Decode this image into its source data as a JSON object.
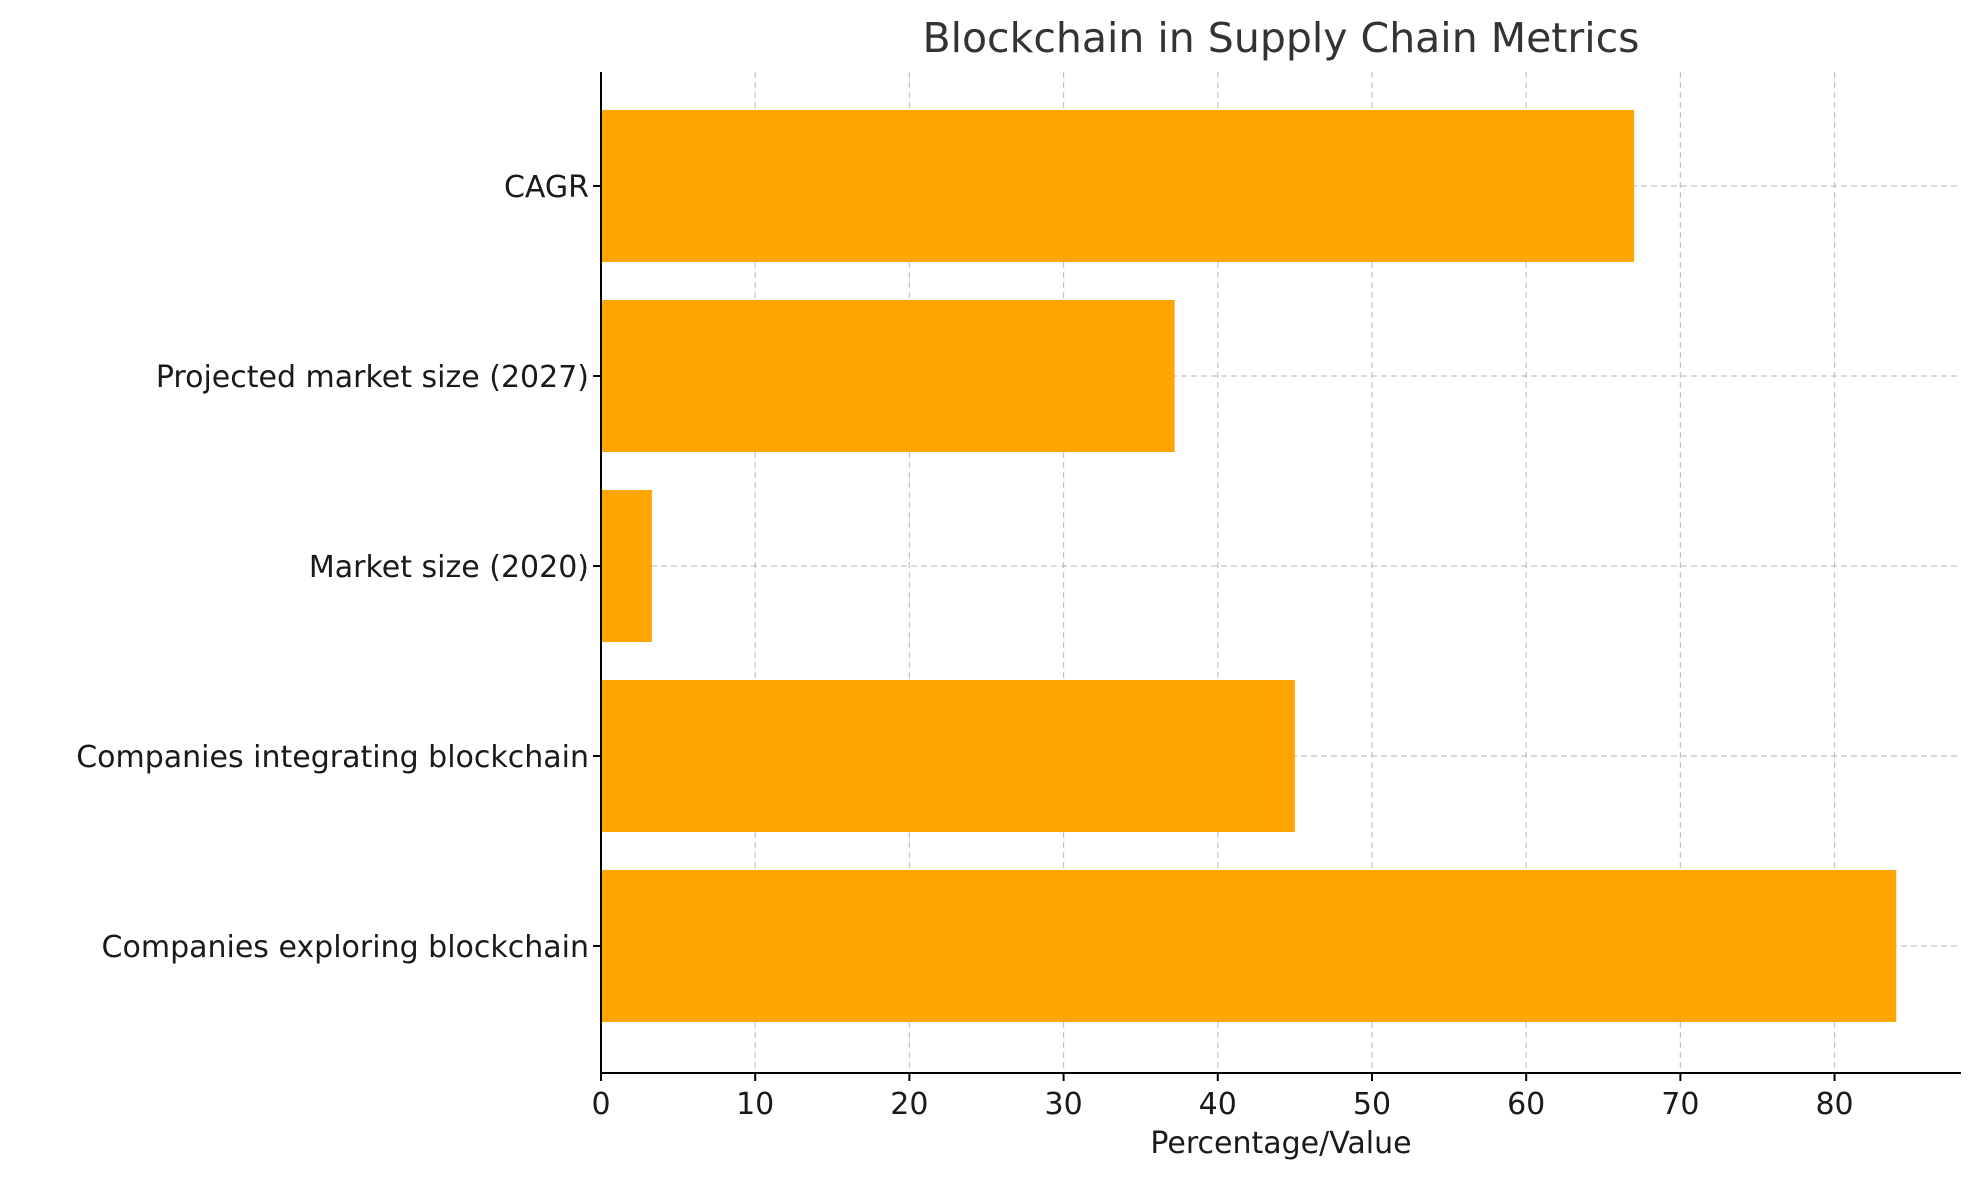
{
  "chart_data": {
    "type": "bar",
    "orientation": "horizontal",
    "title": "Blockchain in Supply Chain Metrics",
    "xlabel": "Percentage/Value",
    "ylabel": "",
    "categories": [
      "Companies exploring blockchain",
      "Companies integrating blockchain",
      "Market size (2020)",
      "Projected market size (2027)",
      "CAGR"
    ],
    "values": [
      84,
      45,
      3.3,
      37.2,
      67
    ],
    "xlim": [
      0,
      88.2
    ],
    "xticks": [
      0,
      10,
      20,
      30,
      40,
      50,
      60,
      70,
      80
    ],
    "grid": true,
    "bar_color": "#FFA500",
    "grid_color": "#b0b0b0",
    "axis_color": "#000000",
    "text_color": "#1a1a1a",
    "title_color": "#333333"
  }
}
